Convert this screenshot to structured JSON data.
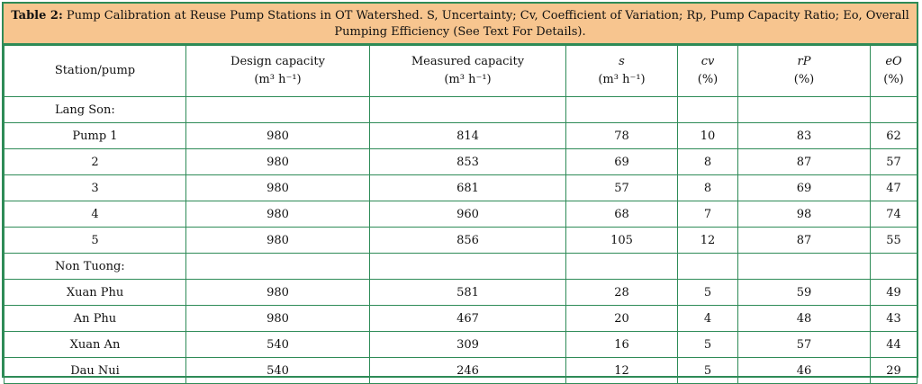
{
  "caption": {
    "label": "Table 2:",
    "text": "Pump Calibration at Reuse Pump Stations in OT Watershed. S, Uncertainty; Cv, Coefficient of Variation; Rp, Pump Capacity Ratio; Eo, Overall Pumping Efficiency (See Text For Details)."
  },
  "headers": [
    {
      "line1": "Station/pump",
      "line2": ""
    },
    {
      "line1": "Design capacity",
      "line2": "(m³ h⁻¹)"
    },
    {
      "line1": "Measured capacity",
      "line2": "(m³ h⁻¹)"
    },
    {
      "line1": "s",
      "line2": "(m³ h⁻¹)"
    },
    {
      "line1": "cv",
      "line2": "(%)"
    },
    {
      "line1": "rP",
      "line2": "(%)"
    },
    {
      "line1": "eO",
      "line2": "(%)"
    }
  ],
  "rows": [
    {
      "group": "Lang Son:"
    },
    {
      "cells": [
        "Pump 1",
        "980",
        "814",
        "78",
        "10",
        "83",
        "62"
      ]
    },
    {
      "cells": [
        "2",
        "980",
        "853",
        "69",
        "8",
        "87",
        "57"
      ]
    },
    {
      "cells": [
        "3",
        "980",
        "681",
        "57",
        "8",
        "69",
        "47"
      ]
    },
    {
      "cells": [
        "4",
        "980",
        "960",
        "68",
        "7",
        "98",
        "74"
      ]
    },
    {
      "cells": [
        "5",
        "980",
        "856",
        "105",
        "12",
        "87",
        "55"
      ]
    },
    {
      "group": "Non Tuong:"
    },
    {
      "cells": [
        "Xuan Phu",
        "980",
        "581",
        "28",
        "5",
        "59",
        "49"
      ]
    },
    {
      "cells": [
        "An Phu",
        "980",
        "467",
        "20",
        "4",
        "48",
        "43"
      ]
    },
    {
      "cells": [
        "Xuan An",
        "540",
        "309",
        "16",
        "5",
        "57",
        "44"
      ]
    },
    {
      "cells": [
        "Dau Nui",
        "540",
        "246",
        "12",
        "5",
        "46",
        "29"
      ]
    }
  ],
  "colors": {
    "border": "#2e8b57",
    "caption_bg": "#f7c58f"
  }
}
